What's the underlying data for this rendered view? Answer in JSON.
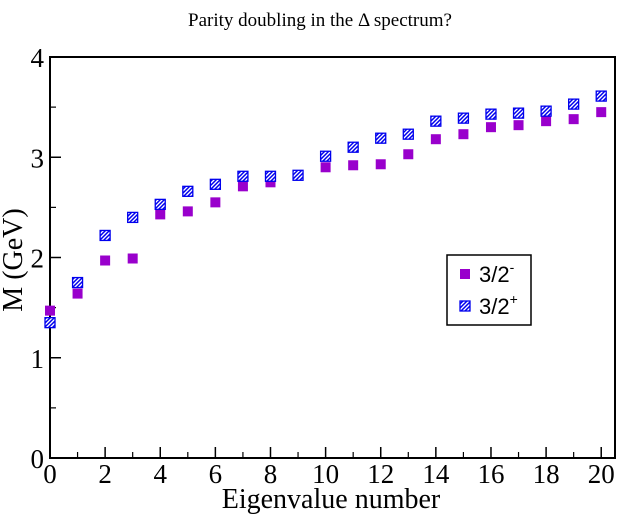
{
  "chart_data": {
    "type": "scatter",
    "title": "Parity doubling in the Δ spectrum?",
    "xlabel": "Eigenvalue number",
    "ylabel": "M (GeV)",
    "xlim": [
      0,
      20.5
    ],
    "ylim": [
      0,
      4
    ],
    "xticks": [
      0,
      2,
      4,
      6,
      8,
      10,
      12,
      14,
      16,
      18,
      20
    ],
    "yticks": [
      0,
      1,
      2,
      3,
      4
    ],
    "grid": false,
    "legend_position": "right-middle",
    "series": [
      {
        "name": "3/2-",
        "label_main": "3/2",
        "label_sup": "-",
        "marker": "filled-square",
        "color": "#9900cc",
        "x": [
          0,
          1,
          2,
          3,
          4,
          5,
          6,
          7,
          8,
          9,
          10,
          11,
          12,
          13,
          14,
          15,
          16,
          17,
          18,
          19,
          20
        ],
        "y": [
          1.47,
          1.64,
          1.97,
          1.99,
          2.43,
          2.46,
          2.55,
          2.71,
          2.75,
          2.82,
          2.9,
          2.92,
          2.93,
          3.03,
          3.18,
          3.23,
          3.3,
          3.32,
          3.36,
          3.38,
          3.45
        ]
      },
      {
        "name": "3/2+",
        "label_main": "3/2",
        "label_sup": "+",
        "marker": "hatched-square",
        "color": "#0000ee",
        "x": [
          0,
          1,
          2,
          3,
          4,
          5,
          6,
          7,
          8,
          9,
          10,
          11,
          12,
          13,
          14,
          15,
          16,
          17,
          18,
          19,
          20
        ],
        "y": [
          1.35,
          1.75,
          2.22,
          2.4,
          2.53,
          2.66,
          2.73,
          2.81,
          2.81,
          2.82,
          3.01,
          3.1,
          3.19,
          3.23,
          3.36,
          3.39,
          3.43,
          3.44,
          3.46,
          3.53,
          3.61
        ]
      }
    ]
  }
}
